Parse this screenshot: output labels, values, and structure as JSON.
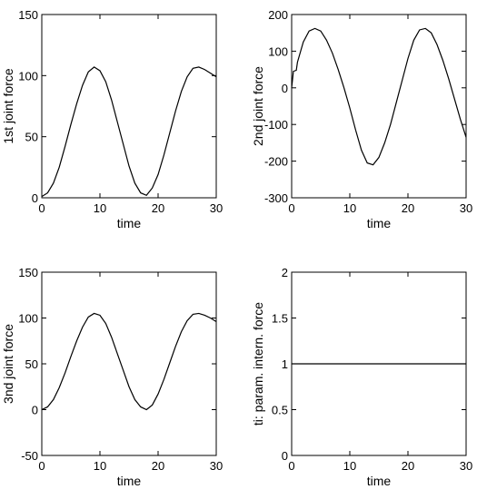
{
  "chart_data": [
    {
      "type": "line",
      "xlabel": "time",
      "ylabel": "1st joint force",
      "xlim": [
        0,
        30
      ],
      "ylim": [
        0,
        150
      ],
      "xticks": [
        0,
        10,
        20,
        30
      ],
      "yticks": [
        0,
        50,
        100,
        150
      ],
      "grid": false,
      "series": [
        {
          "x": [
            0,
            1,
            2,
            3,
            4,
            5,
            6,
            7,
            8,
            9,
            10,
            11,
            12,
            13,
            14,
            15,
            16,
            17,
            18,
            19,
            20,
            21,
            22,
            23,
            24,
            25,
            26,
            27,
            28,
            29,
            30
          ],
          "y": [
            1,
            4,
            12,
            25,
            42,
            60,
            77,
            92,
            103,
            107,
            104,
            95,
            80,
            62,
            44,
            26,
            12,
            4,
            2,
            8,
            19,
            35,
            53,
            71,
            87,
            99,
            106,
            107,
            105,
            102,
            99
          ]
        }
      ]
    },
    {
      "type": "line",
      "xlabel": "time",
      "ylabel": "2nd joint force",
      "xlim": [
        0,
        30
      ],
      "ylim": [
        -300,
        200
      ],
      "xticks": [
        0,
        10,
        20,
        30
      ],
      "yticks": [
        -300,
        -200,
        -100,
        0,
        100,
        200
      ],
      "grid": false,
      "series": [
        {
          "x": [
            0,
            0.3,
            0.8,
            1,
            2,
            3,
            4,
            5,
            6,
            7,
            8,
            9,
            10,
            11,
            12,
            13,
            14,
            15,
            16,
            17,
            18,
            19,
            20,
            21,
            22,
            23,
            24,
            25,
            26,
            27,
            28,
            29,
            30
          ],
          "y": [
            0,
            45,
            48,
            70,
            125,
            155,
            162,
            155,
            130,
            95,
            50,
            0,
            -55,
            -115,
            -170,
            -205,
            -210,
            -190,
            -150,
            -100,
            -40,
            20,
            80,
            130,
            158,
            162,
            150,
            118,
            75,
            25,
            -30,
            -85,
            -135
          ]
        }
      ]
    },
    {
      "type": "line",
      "xlabel": "time",
      "ylabel": "3nd joint force",
      "xlim": [
        0,
        30
      ],
      "ylim": [
        -50,
        150
      ],
      "xticks": [
        0,
        10,
        20,
        30
      ],
      "yticks": [
        -50,
        0,
        50,
        100,
        150
      ],
      "grid": false,
      "series": [
        {
          "x": [
            0,
            1,
            2,
            3,
            4,
            5,
            6,
            7,
            8,
            9,
            10,
            11,
            12,
            13,
            14,
            15,
            16,
            17,
            18,
            19,
            20,
            21,
            22,
            23,
            24,
            25,
            26,
            27,
            28,
            29,
            30
          ],
          "y": [
            0,
            3,
            11,
            24,
            40,
            58,
            75,
            90,
            101,
            105,
            103,
            94,
            79,
            61,
            43,
            25,
            11,
            3,
            0,
            5,
            17,
            33,
            51,
            69,
            85,
            97,
            104,
            105,
            103,
            100,
            96
          ]
        }
      ]
    },
    {
      "type": "line",
      "xlabel": "time",
      "ylabel": "ti: param. intern. force",
      "xlim": [
        0,
        30
      ],
      "ylim": [
        0,
        2
      ],
      "xticks": [
        0,
        10,
        20,
        30
      ],
      "yticks": [
        0,
        0.5,
        1,
        1.5,
        2
      ],
      "grid": false,
      "series": [
        {
          "x": [
            0,
            30
          ],
          "y": [
            1,
            1
          ]
        }
      ]
    }
  ]
}
